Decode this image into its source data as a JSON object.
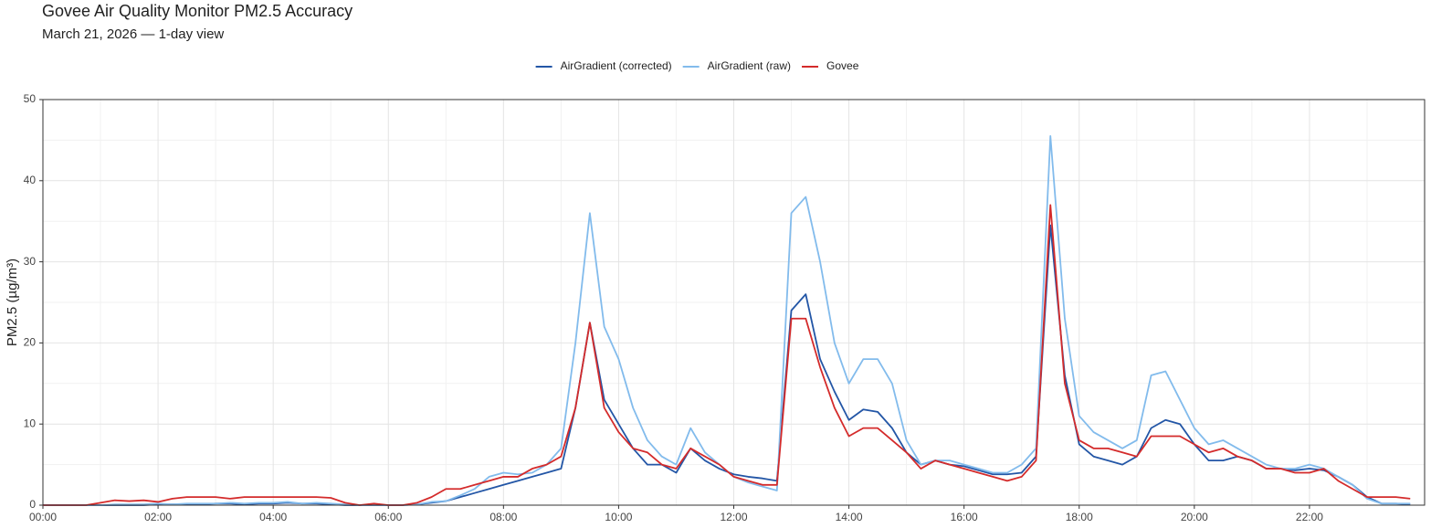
{
  "chart_data": {
    "type": "line",
    "title": "Govee Air Quality Monitor PM2.5 Accuracy",
    "subtitle": "March 21, 2026 — 1-day view",
    "y_label": "PM2.5 (µg/m³)",
    "x": [
      0,
      0.25,
      0.5,
      0.75,
      1,
      1.25,
      1.5,
      1.75,
      2,
      2.25,
      2.5,
      2.75,
      3,
      3.25,
      3.5,
      3.75,
      4,
      4.25,
      4.5,
      4.75,
      5,
      5.25,
      5.5,
      5.75,
      6,
      6.25,
      6.5,
      6.75,
      7,
      7.25,
      7.5,
      7.75,
      8,
      8.25,
      8.5,
      8.75,
      9,
      9.25,
      9.5,
      9.75,
      10,
      10.25,
      10.5,
      10.75,
      11,
      11.25,
      11.5,
      11.75,
      12,
      12.25,
      12.5,
      12.75,
      13,
      13.25,
      13.5,
      13.75,
      14,
      14.25,
      14.5,
      14.75,
      15,
      15.25,
      15.5,
      15.75,
      16,
      16.25,
      16.5,
      16.75,
      17,
      17.25,
      17.5,
      17.75,
      18,
      18.25,
      18.5,
      18.75,
      19,
      19.25,
      19.5,
      19.75,
      20,
      20.25,
      20.5,
      20.75,
      21,
      21.25,
      21.5,
      21.75,
      22,
      22.25,
      22.5,
      22.75,
      23,
      23.25,
      23.5,
      23.75
    ],
    "series": [
      {
        "name": "AirGradient (corrected)",
        "color": "#2356a6",
        "values": [
          0,
          0,
          0,
          0,
          0,
          0,
          0,
          0,
          0.1,
          0.1,
          0.1,
          0.1,
          0.2,
          0.2,
          0.1,
          0.2,
          0.2,
          0.3,
          0.2,
          0.2,
          0.1,
          0,
          0,
          0,
          0,
          0,
          0.1,
          0.3,
          0.5,
          1,
          1.5,
          2,
          2.5,
          3,
          3.5,
          4,
          4.5,
          12,
          22.5,
          13,
          10,
          7,
          5,
          5,
          4,
          7,
          5.5,
          4.5,
          3.8,
          3.5,
          3.3,
          3,
          24,
          26,
          18,
          14,
          10.5,
          11.8,
          11.5,
          9.5,
          6.5,
          5,
          5.5,
          5,
          4.8,
          4.3,
          3.8,
          3.8,
          4,
          6,
          34.5,
          16,
          7.5,
          6,
          5.5,
          5,
          6,
          9.5,
          10.5,
          10,
          7.5,
          5.5,
          5.5,
          6,
          5.5,
          4.5,
          4.5,
          4.3,
          4.5,
          4.3,
          3.5,
          2.5,
          1,
          0.2,
          0.2,
          0.1
        ]
      },
      {
        "name": "AirGradient (raw)",
        "color": "#82bbec",
        "values": [
          0,
          0,
          0,
          0,
          0,
          0.1,
          0.1,
          0.1,
          0.2,
          0.1,
          0.2,
          0.2,
          0.2,
          0.3,
          0.2,
          0.3,
          0.3,
          0.4,
          0.2,
          0.3,
          0.2,
          0.1,
          0,
          0,
          0,
          0,
          0.1,
          0.4,
          0.5,
          1.2,
          2,
          3.5,
          4,
          3.8,
          4,
          5,
          7,
          20,
          36,
          22,
          18,
          12,
          8,
          6,
          5,
          9.5,
          6.5,
          5,
          3.5,
          2.8,
          2.3,
          1.8,
          36,
          38,
          30,
          20,
          15,
          18,
          18,
          15,
          8,
          5,
          5.5,
          5.5,
          5,
          4.5,
          4,
          4,
          5,
          7,
          45.5,
          23,
          11,
          9,
          8,
          7,
          8,
          16,
          16.5,
          13,
          9.5,
          7.5,
          8,
          7,
          6,
          5,
          4.5,
          4.5,
          5,
          4.5,
          3.5,
          2.5,
          0.8,
          0.2,
          0.2,
          0.2
        ]
      },
      {
        "name": "Govee",
        "color": "#d42b2b",
        "values": [
          0,
          0,
          0,
          0,
          0.3,
          0.6,
          0.5,
          0.6,
          0.4,
          0.8,
          1,
          1,
          1,
          0.8,
          1,
          1,
          1,
          1,
          1,
          1,
          0.9,
          0.3,
          0,
          0.2,
          0,
          0,
          0.3,
          1,
          2,
          2,
          2.5,
          3,
          3.5,
          3.5,
          4.5,
          5,
          6,
          12,
          22.5,
          12,
          9,
          7,
          6.5,
          5,
          4.5,
          7,
          6,
          5,
          3.5,
          3,
          2.5,
          2.5,
          23,
          23,
          17,
          12,
          8.5,
          9.5,
          9.5,
          8,
          6.5,
          4.5,
          5.5,
          5,
          4.5,
          4,
          3.5,
          3,
          3.5,
          5.5,
          37,
          15,
          8,
          7,
          7,
          6.5,
          6,
          8.5,
          8.5,
          8.5,
          7.5,
          6.5,
          7,
          6,
          5.5,
          4.5,
          4.5,
          4,
          4,
          4.5,
          3,
          2,
          1,
          1,
          1,
          0.8
        ]
      }
    ],
    "xlim": [
      0,
      24
    ],
    "xticks": [
      {
        "value": 0,
        "label": "00:00"
      },
      {
        "value": 2,
        "label": "02:00"
      },
      {
        "value": 4,
        "label": "04:00"
      },
      {
        "value": 6,
        "label": "06:00"
      },
      {
        "value": 8,
        "label": "08:00"
      },
      {
        "value": 10,
        "label": "10:00"
      },
      {
        "value": 12,
        "label": "12:00"
      },
      {
        "value": 14,
        "label": "14:00"
      },
      {
        "value": 16,
        "label": "16:00"
      },
      {
        "value": 18,
        "label": "18:00"
      },
      {
        "value": 20,
        "label": "20:00"
      },
      {
        "value": 22,
        "label": "22:00"
      }
    ],
    "ylim": [
      0,
      50
    ],
    "yticks": [
      0,
      10,
      20,
      30,
      40,
      50
    ],
    "grid": true,
    "minor_grid": true,
    "legend": "top"
  }
}
